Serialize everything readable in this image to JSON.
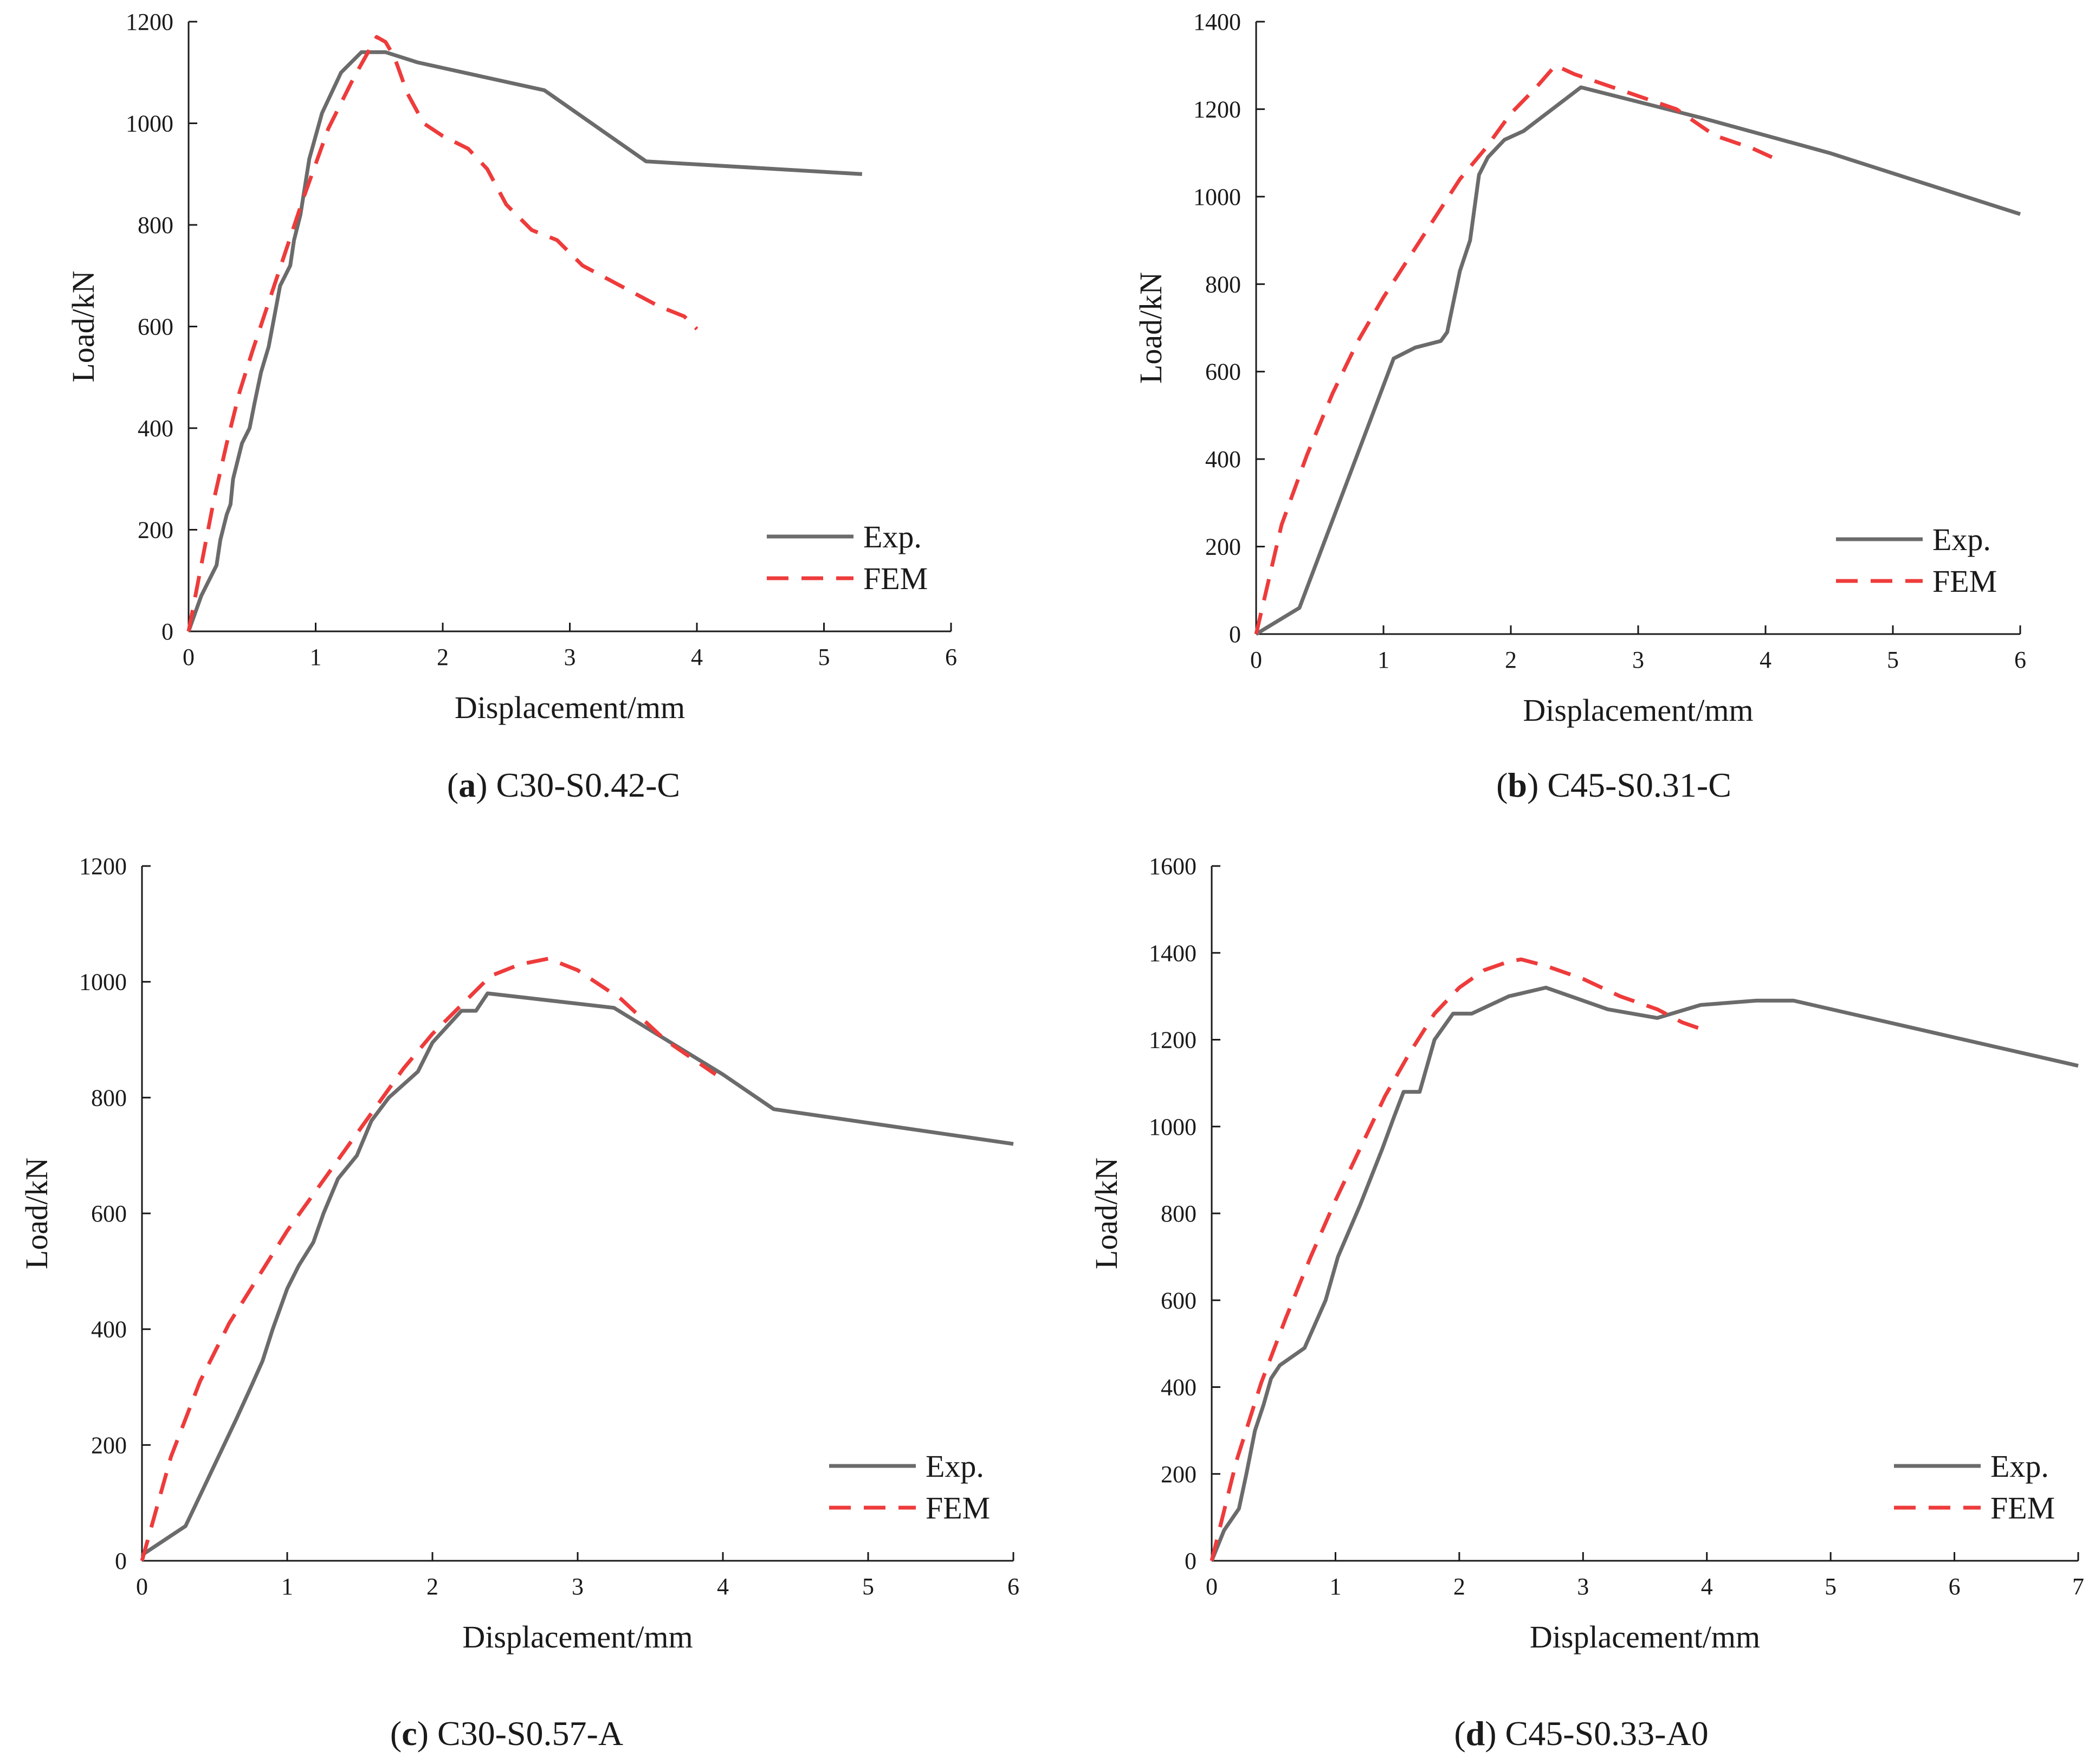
{
  "colors": {
    "exp": "#6b6b6b",
    "fem": "#ee3b3b",
    "axis": "#1a1a1a"
  },
  "chart_data": [
    {
      "type": "line",
      "caption": {
        "letter": "a",
        "open": "(",
        "close": ")",
        "text": "C30-S0.42-C"
      },
      "xlabel": "Displacement/mm",
      "ylabel": "Load/kN",
      "xlim": [
        0,
        6
      ],
      "ylim": [
        0,
        1200
      ],
      "xticks": [
        0,
        1,
        2,
        3,
        4,
        5,
        6
      ],
      "yticks": [
        0,
        200,
        400,
        600,
        800,
        1000,
        1200
      ],
      "legend": {
        "position": "bottom-right",
        "entries": [
          "Exp.",
          "FEM"
        ]
      },
      "series": [
        {
          "name": "Exp.",
          "style": "solid",
          "x": [
            0,
            0.1,
            0.22,
            0.25,
            0.3,
            0.33,
            0.35,
            0.42,
            0.48,
            0.52,
            0.57,
            0.63,
            0.66,
            0.72,
            0.8,
            0.83,
            0.88,
            0.95,
            1.05,
            1.2,
            1.36,
            1.55,
            1.8,
            2.8,
            3.6,
            5.3
          ],
          "y": [
            0,
            70,
            130,
            180,
            230,
            250,
            300,
            370,
            400,
            450,
            510,
            560,
            600,
            680,
            720,
            770,
            820,
            930,
            1020,
            1100,
            1140,
            1140,
            1120,
            1065,
            925,
            900
          ]
        },
        {
          "name": "FEM",
          "style": "dashed",
          "x": [
            0,
            0.1,
            0.2,
            0.3,
            0.4,
            0.5,
            0.7,
            0.9,
            1.1,
            1.3,
            1.48,
            1.55,
            1.62,
            1.72,
            1.85,
            2.0,
            2.2,
            2.35,
            2.5,
            2.7,
            2.9,
            3.1,
            3.4,
            3.7,
            3.9,
            4.0
          ],
          "y": [
            0,
            130,
            260,
            370,
            470,
            550,
            700,
            850,
            990,
            1090,
            1170,
            1160,
            1130,
            1060,
            1000,
            975,
            950,
            910,
            840,
            790,
            770,
            720,
            680,
            640,
            620,
            595
          ]
        }
      ]
    },
    {
      "type": "line",
      "caption": {
        "letter": "b",
        "open": "(",
        "close": ")",
        "text": "C45-S0.31-C"
      },
      "xlabel": "Displacement/mm",
      "ylabel": "Load/kN",
      "xlim": [
        0,
        6
      ],
      "ylim": [
        0,
        1400
      ],
      "xticks": [
        0,
        1,
        2,
        3,
        4,
        5,
        6
      ],
      "yticks": [
        0,
        200,
        400,
        600,
        800,
        1000,
        1200,
        1400
      ],
      "legend": {
        "position": "bottom-right",
        "entries": [
          "Exp.",
          "FEM"
        ]
      },
      "series": [
        {
          "name": "Exp.",
          "style": "solid",
          "x": [
            0,
            0.34,
            1.08,
            1.25,
            1.45,
            1.5,
            1.6,
            1.68,
            1.75,
            1.82,
            1.95,
            2.1,
            2.55,
            3.5,
            4.5,
            6.0
          ],
          "y": [
            0,
            60,
            630,
            655,
            670,
            690,
            830,
            900,
            1050,
            1090,
            1130,
            1150,
            1250,
            1180,
            1100,
            960
          ]
        },
        {
          "name": "FEM",
          "style": "dashed",
          "x": [
            0,
            0.2,
            0.4,
            0.6,
            0.8,
            1.0,
            1.2,
            1.4,
            1.6,
            1.8,
            2.0,
            2.2,
            2.35,
            2.5,
            2.7,
            3.0,
            3.3,
            3.6,
            3.9,
            4.05
          ],
          "y": [
            0,
            250,
            410,
            550,
            670,
            770,
            860,
            950,
            1040,
            1110,
            1190,
            1250,
            1300,
            1280,
            1260,
            1230,
            1200,
            1140,
            1110,
            1090
          ]
        }
      ]
    },
    {
      "type": "line",
      "caption": {
        "letter": "c",
        "open": "(",
        "close": ")",
        "text": "C30-S0.57-A"
      },
      "xlabel": "Displacement/mm",
      "ylabel": "Load/kN",
      "xlim": [
        0,
        6
      ],
      "ylim": [
        0,
        1200
      ],
      "xticks": [
        0,
        1,
        2,
        3,
        4,
        5,
        6
      ],
      "yticks": [
        0,
        200,
        400,
        600,
        800,
        1000,
        1200
      ],
      "legend": {
        "position": "bottom-right",
        "entries": [
          "Exp.",
          "FEM"
        ]
      },
      "series": [
        {
          "name": "Exp.",
          "style": "solid",
          "x": [
            0,
            0.3,
            0.65,
            0.75,
            0.83,
            0.9,
            1.0,
            1.08,
            1.18,
            1.25,
            1.35,
            1.48,
            1.58,
            1.7,
            1.9,
            2.0,
            2.2,
            2.3,
            2.38,
            3.25,
            4.0,
            4.35,
            6.0
          ],
          "y": [
            10,
            60,
            245,
            300,
            345,
            400,
            470,
            510,
            550,
            600,
            660,
            700,
            760,
            800,
            845,
            895,
            950,
            950,
            980,
            955,
            840,
            780,
            720
          ]
        },
        {
          "name": "FEM",
          "style": "dashed",
          "x": [
            0,
            0.2,
            0.4,
            0.6,
            0.8,
            1.0,
            1.2,
            1.4,
            1.6,
            1.8,
            2.0,
            2.2,
            2.4,
            2.6,
            2.8,
            3.0,
            3.3,
            3.6,
            3.95
          ],
          "y": [
            0,
            180,
            310,
            410,
            490,
            570,
            640,
            710,
            780,
            850,
            910,
            960,
            1010,
            1030,
            1040,
            1020,
            970,
            900,
            840
          ]
        }
      ]
    },
    {
      "type": "line",
      "caption": {
        "letter": "d",
        "open": "(",
        "close": ")",
        "text": "C45-S0.33-A0"
      },
      "xlabel": "Displacement/mm",
      "ylabel": "Load/kN",
      "xlim": [
        0,
        7
      ],
      "ylim": [
        0,
        1600
      ],
      "xticks": [
        0,
        1,
        2,
        3,
        4,
        5,
        6,
        7
      ],
      "yticks": [
        0,
        200,
        400,
        600,
        800,
        1000,
        1200,
        1400,
        1600
      ],
      "legend": {
        "position": "bottom-right",
        "entries": [
          "Exp.",
          "FEM"
        ]
      },
      "series": [
        {
          "name": "Exp.",
          "style": "solid",
          "x": [
            0,
            0.1,
            0.22,
            0.28,
            0.35,
            0.42,
            0.48,
            0.55,
            0.75,
            0.92,
            1.02,
            1.2,
            1.38,
            1.47,
            1.55,
            1.68,
            1.8,
            1.9,
            1.95,
            2.1,
            2.4,
            2.7,
            3.2,
            3.6,
            3.95,
            4.4,
            4.7,
            7.0
          ],
          "y": [
            0,
            70,
            120,
            200,
            300,
            360,
            420,
            450,
            490,
            600,
            700,
            820,
            950,
            1020,
            1080,
            1080,
            1200,
            1240,
            1260,
            1260,
            1300,
            1320,
            1270,
            1250,
            1280,
            1290,
            1290,
            1140
          ]
        },
        {
          "name": "FEM",
          "style": "dashed",
          "x": [
            0,
            0.2,
            0.4,
            0.6,
            0.8,
            1.0,
            1.2,
            1.4,
            1.6,
            1.8,
            2.0,
            2.2,
            2.4,
            2.5,
            2.7,
            3.0,
            3.3,
            3.6,
            3.8,
            4.0
          ],
          "y": [
            0,
            230,
            410,
            560,
            700,
            830,
            950,
            1070,
            1170,
            1260,
            1320,
            1360,
            1380,
            1385,
            1370,
            1340,
            1300,
            1270,
            1240,
            1220
          ]
        }
      ]
    }
  ]
}
